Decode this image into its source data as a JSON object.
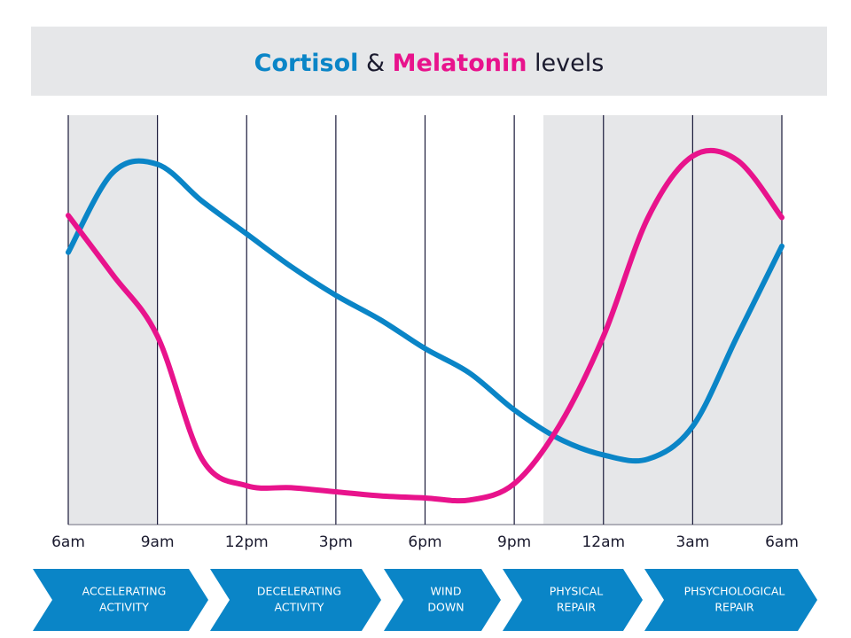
{
  "chart_data": {
    "type": "line",
    "title_connector": "&",
    "title_suffix": "levels",
    "categories": [
      "6am",
      null,
      "9am",
      null,
      "12pm",
      null,
      "3pm",
      null,
      "6pm",
      null,
      "9pm",
      null,
      "12am",
      null,
      "3am",
      null,
      "6am"
    ],
    "ylim": [
      0,
      100
    ],
    "series": [
      {
        "name": "Cortisol",
        "color": "#0a85c7",
        "values": [
          66.5,
          86,
          88,
          79,
          71,
          63,
          56,
          50,
          43,
          37,
          28,
          21,
          17,
          16,
          24,
          46,
          68
        ]
      },
      {
        "name": "Melatonin",
        "color": "#e8138c",
        "values": [
          75.5,
          61,
          46,
          16,
          9.5,
          9,
          8,
          7,
          6.5,
          6,
          10,
          24,
          46,
          75,
          90,
          89,
          75
        ]
      }
    ],
    "phases": [
      [
        "ACCELERATING",
        "ACTIVITY"
      ],
      [
        "DECELERATING",
        "ACTIVITY"
      ],
      [
        "WIND",
        "DOWN"
      ],
      [
        "PHYSICAL",
        "REPAIR"
      ],
      [
        "PHSYCHOLOGICAL",
        "REPAIR"
      ]
    ]
  }
}
